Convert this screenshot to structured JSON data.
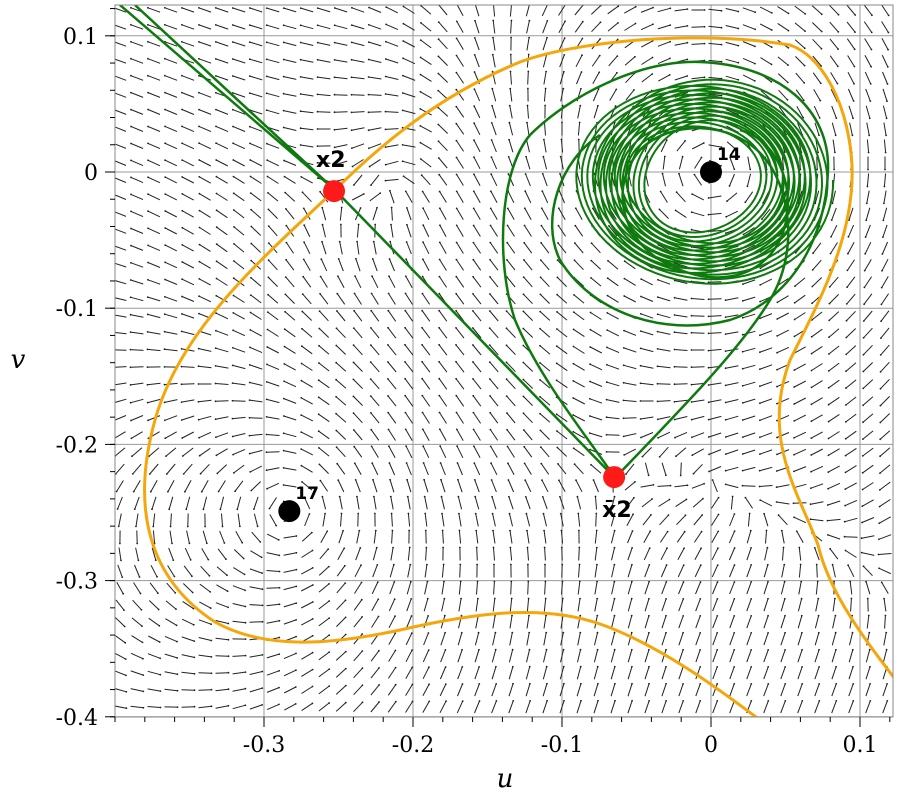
{
  "axes": {
    "xlabel": "u",
    "ylabel": "v",
    "xlim": [
      -0.4,
      0.12
    ],
    "ylim": [
      -0.4,
      0.12
    ],
    "x_ticks": [
      -0.3,
      -0.2,
      -0.1,
      0,
      0.1
    ],
    "x_tick_labels": [
      "-0.3",
      "-0.2",
      "-0.1",
      "0",
      "0.1"
    ],
    "y_ticks": [
      0.1,
      0,
      -0.1,
      -0.2,
      -0.3,
      -0.4
    ],
    "y_tick_labels": [
      "0.1",
      "0",
      "-0.1",
      "-0.2",
      "-0.3",
      "-0.4"
    ],
    "grid": true
  },
  "points": [
    {
      "label": "14",
      "x": 0,
      "y": 0,
      "color": "#000000"
    },
    {
      "label": "17",
      "x": -0.283,
      "y": -0.249,
      "color": "#000000"
    },
    {
      "label": "x2",
      "x": -0.253,
      "y": -0.014,
      "color": "#ff1a1a"
    },
    {
      "label": "x̄2",
      "x": -0.065,
      "y": -0.224,
      "color": "#ff1a1a"
    }
  ],
  "colors": {
    "orange_curve": "#f5a60a",
    "green_curve": "#0e7a0e",
    "fixed_point": "#ff1a1a",
    "center": "#000000"
  }
}
